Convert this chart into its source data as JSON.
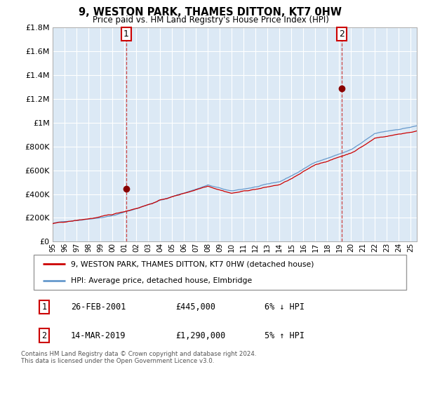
{
  "title": "9, WESTON PARK, THAMES DITTON, KT7 0HW",
  "subtitle": "Price paid vs. HM Land Registry's House Price Index (HPI)",
  "ylim": [
    0,
    1800000
  ],
  "yticks": [
    0,
    200000,
    400000,
    600000,
    800000,
    1000000,
    1200000,
    1400000,
    1600000,
    1800000
  ],
  "ytick_labels": [
    "£0",
    "£200K",
    "£400K",
    "£600K",
    "£800K",
    "£1M",
    "£1.2M",
    "£1.4M",
    "£1.6M",
    "£1.8M"
  ],
  "xlim_start": 1995.0,
  "xlim_end": 2025.5,
  "plot_bg_color": "#dce9f5",
  "grid_color": "#ffffff",
  "red_line_color": "#cc0000",
  "blue_line_color": "#6699cc",
  "marker1_x": 2001.15,
  "marker1_y": 445000,
  "marker2_x": 2019.2,
  "marker2_y": 1290000,
  "marker_color": "#880000",
  "dashed_line_color": "#cc4444",
  "legend_label_red": "9, WESTON PARK, THAMES DITTON, KT7 0HW (detached house)",
  "legend_label_blue": "HPI: Average price, detached house, Elmbridge",
  "annotation1_num": "1",
  "annotation1_date": "26-FEB-2001",
  "annotation1_price": "£445,000",
  "annotation1_hpi": "6% ↓ HPI",
  "annotation2_num": "2",
  "annotation2_date": "14-MAR-2019",
  "annotation2_price": "£1,290,000",
  "annotation2_hpi": "5% ↑ HPI",
  "footer": "Contains HM Land Registry data © Crown copyright and database right 2024.\nThis data is licensed under the Open Government Licence v3.0."
}
